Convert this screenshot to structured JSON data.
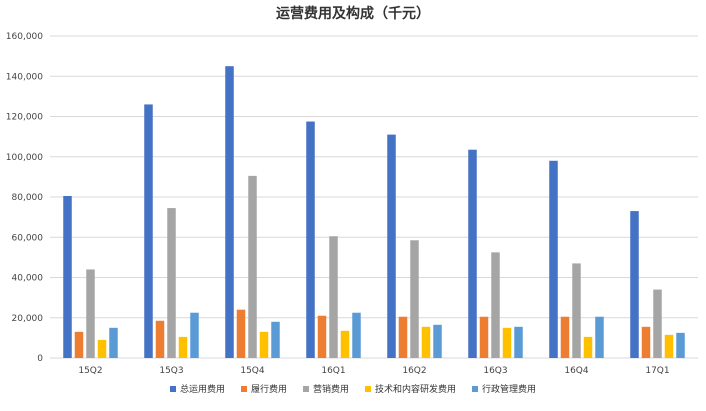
{
  "chart_data": {
    "type": "bar",
    "title": "运营费用及构成（千元）",
    "xlabel": "",
    "ylabel": "",
    "ylim": [
      0,
      160000
    ],
    "yticks": [
      0,
      20000,
      40000,
      60000,
      80000,
      100000,
      120000,
      140000,
      160000
    ],
    "ytick_labels": [
      "0",
      "20,000",
      "40,000",
      "60,000",
      "80,000",
      "100,000",
      "120,000",
      "140,000",
      "160,000"
    ],
    "grid": true,
    "legend_position": "bottom",
    "categories": [
      "15Q2",
      "15Q3",
      "15Q4",
      "16Q1",
      "16Q2",
      "16Q3",
      "16Q4",
      "17Q1"
    ],
    "series": [
      {
        "name": "总运用费用",
        "color": "#4472C4",
        "values": [
          80500,
          126000,
          145000,
          117500,
          111000,
          103500,
          98000,
          73000
        ]
      },
      {
        "name": "履行费用",
        "color": "#ED7D31",
        "values": [
          13000,
          18500,
          24000,
          21000,
          20500,
          20500,
          20500,
          15500
        ]
      },
      {
        "name": "营销费用",
        "color": "#A5A5A5",
        "values": [
          44000,
          74500,
          90500,
          60500,
          58500,
          52500,
          47000,
          34000
        ]
      },
      {
        "name": "技术和内容研发费用",
        "color": "#FFC000",
        "values": [
          9000,
          10500,
          13000,
          13500,
          15500,
          15000,
          10500,
          11500
        ]
      },
      {
        "name": "行政管理费用",
        "color": "#5B9BD5",
        "values": [
          15000,
          22500,
          18000,
          22500,
          16500,
          15500,
          20500,
          12500
        ]
      }
    ]
  }
}
